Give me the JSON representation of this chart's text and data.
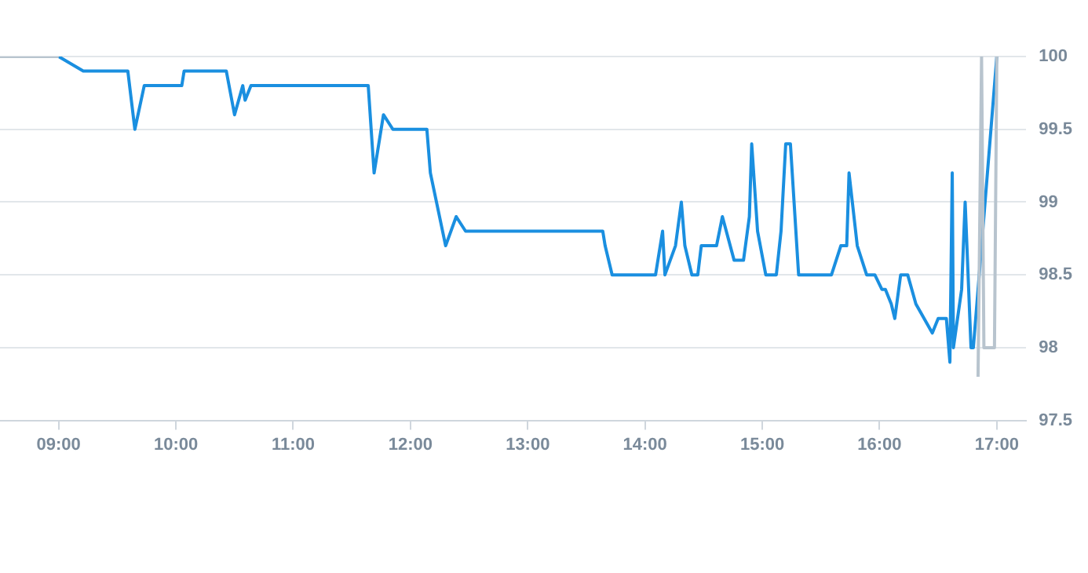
{
  "chart_data": {
    "type": "line",
    "xlim": [
      8.5,
      17.25
    ],
    "ylim": [
      97.5,
      100
    ],
    "xticks": [
      {
        "value": 9,
        "label": "09:00"
      },
      {
        "value": 10,
        "label": "10:00"
      },
      {
        "value": 11,
        "label": "11:00"
      },
      {
        "value": 12,
        "label": "12:00"
      },
      {
        "value": 13,
        "label": "13:00"
      },
      {
        "value": 14,
        "label": "14:00"
      },
      {
        "value": 15,
        "label": "15:00"
      },
      {
        "value": 16,
        "label": "16:00"
      },
      {
        "value": 17,
        "label": "17:00"
      }
    ],
    "yticks": [
      97.5,
      98,
      98.5,
      99,
      99.5,
      100
    ],
    "grid": "y",
    "legend": false,
    "marker": "none",
    "line_style": "solid",
    "series": [
      {
        "color": "#b8c4ce",
        "x": [
          8.5,
          9.0,
          9.1,
          16.84,
          16.87,
          16.89,
          16.98,
          17.0
        ],
        "values": [
          100,
          100,
          null,
          97.8,
          100,
          98,
          98,
          100
        ]
      },
      {
        "color": "#1a8fe0",
        "x": [
          9.0,
          9.21,
          9.59,
          9.65,
          9.73,
          10.05,
          10.07,
          10.43,
          10.5,
          10.57,
          10.59,
          10.64,
          11.64,
          11.69,
          11.77,
          11.85,
          12.14,
          12.17,
          12.3,
          12.39,
          12.47,
          13.64,
          13.66,
          13.72,
          14.09,
          14.15,
          14.17,
          14.26,
          14.31,
          14.34,
          14.4,
          14.45,
          14.48,
          14.61,
          14.66,
          14.76,
          14.84,
          14.89,
          14.91,
          14.96,
          15.03,
          15.12,
          15.16,
          15.2,
          15.24,
          15.31,
          15.59,
          15.67,
          15.72,
          15.74,
          15.81,
          15.89,
          15.96,
          16.02,
          16.05,
          16.1,
          16.13,
          16.18,
          16.24,
          16.31,
          16.38,
          16.45,
          16.5,
          16.57,
          16.6,
          16.62,
          16.63,
          16.7,
          16.73,
          16.78,
          16.8,
          17.0
        ],
        "values": [
          100,
          99.9,
          99.9,
          99.5,
          99.8,
          99.8,
          99.9,
          99.9,
          99.6,
          99.8,
          99.7,
          99.8,
          99.8,
          99.2,
          99.6,
          99.5,
          99.5,
          99.2,
          98.7,
          98.9,
          98.8,
          98.8,
          98.7,
          98.5,
          98.5,
          98.8,
          98.5,
          98.7,
          99.0,
          98.7,
          98.5,
          98.5,
          98.7,
          98.7,
          98.9,
          98.6,
          98.6,
          98.9,
          99.4,
          98.8,
          98.5,
          98.5,
          98.8,
          99.4,
          99.4,
          98.5,
          98.5,
          98.7,
          98.7,
          99.2,
          98.7,
          98.5,
          98.5,
          98.4,
          98.4,
          98.3,
          98.2,
          98.5,
          98.5,
          98.3,
          98.2,
          98.1,
          98.2,
          98.2,
          97.9,
          99.2,
          98.0,
          98.4,
          99.0,
          98.0,
          98.0,
          100
        ]
      }
    ]
  }
}
